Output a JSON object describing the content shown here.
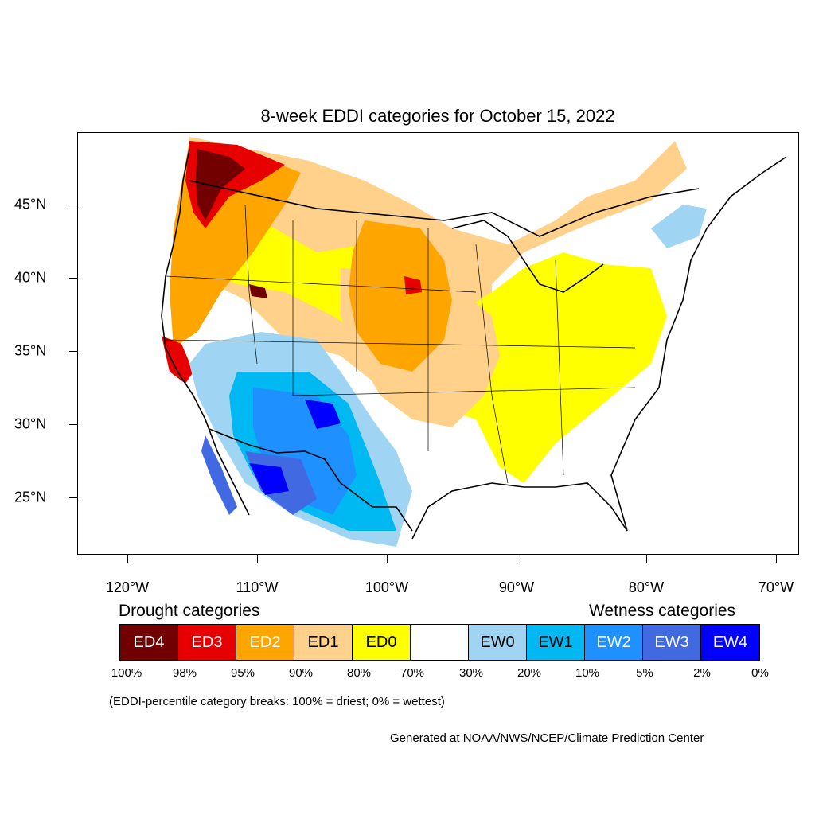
{
  "title": "8-week EDDI categories for October 15, 2022",
  "axes": {
    "lon_ticks": [
      "120°W",
      "110°W",
      "100°W",
      "90°W",
      "80°W",
      "70°W"
    ],
    "lat_ticks": [
      "45°N",
      "40°N",
      "35°N",
      "30°N",
      "25°N"
    ]
  },
  "legend": {
    "drought_heading": "Drought categories",
    "wetness_heading": "Wetness categories",
    "categories": [
      {
        "label": "ED4",
        "color": "#730000",
        "text_color": "#ffffff"
      },
      {
        "label": "ED3",
        "color": "#e60000",
        "text_color": "#ffffff"
      },
      {
        "label": "ED2",
        "color": "#ffa500",
        "text_color": "#ffffff"
      },
      {
        "label": "ED1",
        "color": "#ffd18a",
        "text_color": "#000000"
      },
      {
        "label": "ED0",
        "color": "#ffff00",
        "text_color": "#000000"
      },
      {
        "label": "",
        "color": "#ffffff",
        "text_color": "#000000"
      },
      {
        "label": "EW0",
        "color": "#9fd5f2",
        "text_color": "#000000"
      },
      {
        "label": "EW1",
        "color": "#00b9f2",
        "text_color": "#000000"
      },
      {
        "label": "EW2",
        "color": "#1e90ff",
        "text_color": "#ffffff"
      },
      {
        "label": "EW3",
        "color": "#4169e1",
        "text_color": "#ffffff"
      },
      {
        "label": "EW4",
        "color": "#0000ff",
        "text_color": "#ffffff"
      }
    ],
    "percentile_breaks": [
      "100%",
      "98%",
      "95%",
      "90%",
      "80%",
      "70%",
      "30%",
      "20%",
      "10%",
      "5%",
      "2%",
      "0%"
    ]
  },
  "note": "(EDDI-percentile category breaks: 100% = driest; 0% = wettest)",
  "credit": "Generated at NOAA/NWS/NCEP/Climate Prediction Center"
}
